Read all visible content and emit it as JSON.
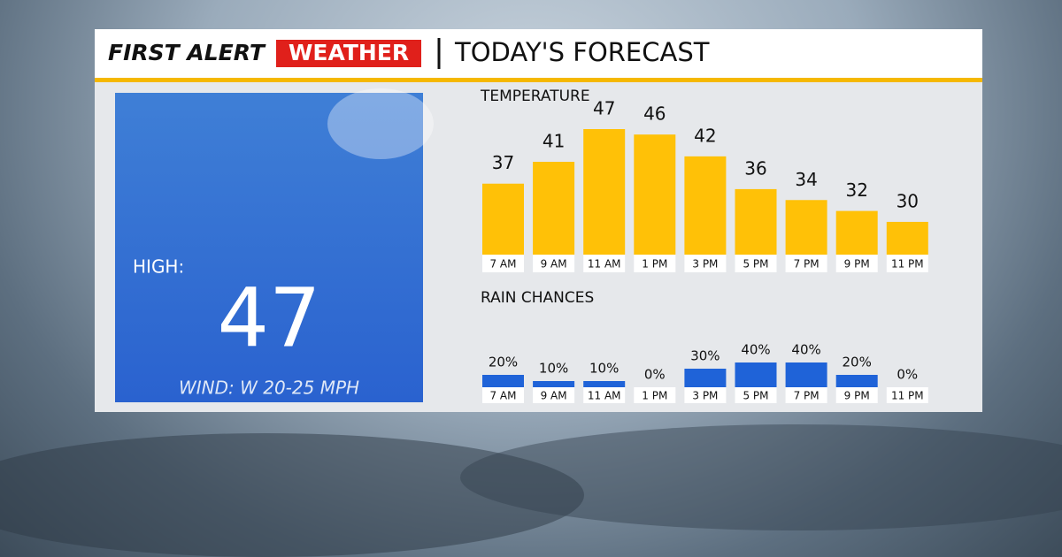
{
  "header": {
    "brand_first": "FIRST ALERT",
    "brand_second": "WEATHER",
    "title": "TODAY'S FORECAST"
  },
  "high_panel": {
    "label": "HIGH:",
    "value": 47,
    "wind": "WIND: W 20-25 MPH"
  },
  "chart_data": [
    {
      "type": "bar",
      "title": "TEMPERATURE",
      "categories": [
        "7 AM",
        "9 AM",
        "11 AM",
        "1 PM",
        "3 PM",
        "5 PM",
        "7 PM",
        "9 PM",
        "11 PM"
      ],
      "values": [
        37,
        41,
        47,
        46,
        42,
        36,
        34,
        32,
        30
      ],
      "color": "#ffc107",
      "ylim": [
        24,
        47
      ]
    },
    {
      "type": "bar",
      "title": "RAIN CHANCES",
      "categories": [
        "7 AM",
        "9 AM",
        "11 AM",
        "1 PM",
        "3 PM",
        "5 PM",
        "7 PM",
        "9 PM",
        "11 PM"
      ],
      "values": [
        20,
        10,
        10,
        0,
        30,
        40,
        40,
        20,
        0
      ],
      "value_labels": [
        "20%",
        "10%",
        "10%",
        "0%",
        "30%",
        "40%",
        "40%",
        "20%",
        "0%"
      ],
      "color": "#1f63d8",
      "ylim": [
        0,
        40
      ]
    }
  ]
}
